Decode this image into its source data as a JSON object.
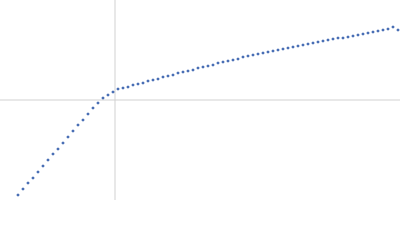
{
  "chart_data": {
    "type": "scatter",
    "x": [
      -0.97,
      -0.92,
      -0.87,
      -0.82,
      -0.77,
      -0.72,
      -0.67,
      -0.62,
      -0.57,
      -0.52,
      -0.47,
      -0.42,
      -0.37,
      -0.32,
      -0.27,
      -0.22,
      -0.17,
      -0.12,
      -0.07,
      -0.02,
      0.03,
      0.08,
      0.13,
      0.18,
      0.23,
      0.28,
      0.33,
      0.38,
      0.43,
      0.48,
      0.53,
      0.58,
      0.63,
      0.68,
      0.73,
      0.78,
      0.83,
      0.88,
      0.93,
      0.98,
      1.03,
      1.08,
      1.13,
      1.18,
      1.23,
      1.28,
      1.33,
      1.38,
      1.43,
      1.48,
      1.53,
      1.58,
      1.63,
      1.68,
      1.73,
      1.78,
      1.83,
      1.88,
      1.93,
      1.98,
      2.03,
      2.08,
      2.13,
      2.18,
      2.23,
      2.28,
      2.33,
      2.38,
      2.43,
      2.48,
      2.53,
      2.58,
      2.63,
      2.68,
      2.73,
      2.78,
      2.83
    ],
    "values": [
      -0.95,
      -0.89,
      -0.83,
      -0.78,
      -0.72,
      -0.66,
      -0.6,
      -0.54,
      -0.49,
      -0.43,
      -0.37,
      -0.31,
      -0.25,
      -0.2,
      -0.14,
      -0.08,
      -0.03,
      0.02,
      0.05,
      0.08,
      0.11,
      0.12,
      0.13,
      0.15,
      0.16,
      0.17,
      0.19,
      0.2,
      0.21,
      0.23,
      0.24,
      0.25,
      0.27,
      0.28,
      0.29,
      0.3,
      0.32,
      0.33,
      0.34,
      0.35,
      0.37,
      0.38,
      0.39,
      0.4,
      0.41,
      0.43,
      0.44,
      0.45,
      0.46,
      0.47,
      0.48,
      0.49,
      0.5,
      0.51,
      0.52,
      0.53,
      0.54,
      0.55,
      0.56,
      0.57,
      0.58,
      0.59,
      0.6,
      0.61,
      0.62,
      0.62,
      0.63,
      0.64,
      0.65,
      0.66,
      0.67,
      0.68,
      0.69,
      0.7,
      0.71,
      0.73,
      0.7
    ],
    "color": "#4a6fb5",
    "xlim": [
      -1.15,
      2.85
    ],
    "ylim": [
      -1,
      1
    ],
    "crosshair": {
      "x": 0,
      "y": 0
    }
  }
}
